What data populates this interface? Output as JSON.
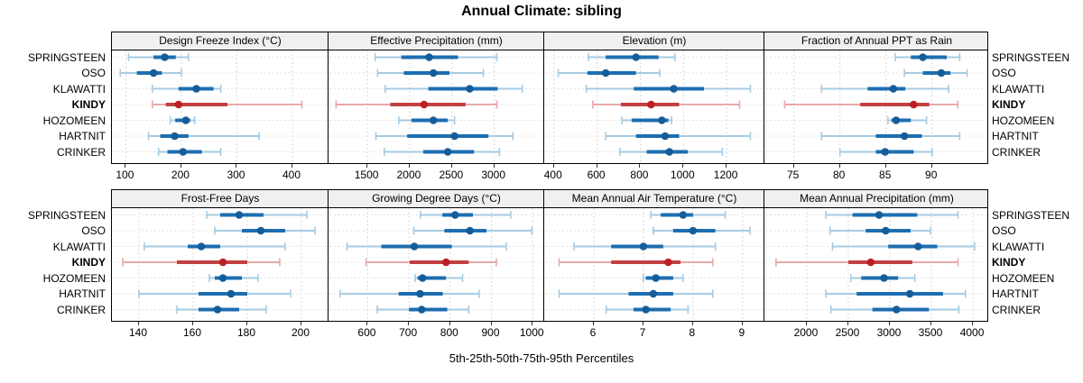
{
  "title": "Annual Climate: sibling",
  "caption": "5th-25th-50th-75th-95th Percentiles",
  "sites": [
    "SPRINGSTEEN",
    "OSO",
    "KLAWATTI",
    "KINDY",
    "HOZOMEEN",
    "HARTNIT",
    "CRINKER"
  ],
  "highlighted_site": "KINDY",
  "percentile_levels": [
    "5th",
    "25th",
    "50th",
    "75th",
    "95th"
  ],
  "colors": {
    "blue_range": "#a6cbe3",
    "blue_bar": "#1d6eb0",
    "blue_dot": "#155d99",
    "red_range": "#e8a9a9",
    "red_bar": "#c24040",
    "red_dot": "#bd1f26",
    "grid": "#cccccc",
    "row_line": "#dcdcdc",
    "strip_bg": "#f0f0f0",
    "border": "#000000"
  },
  "chart_data": {
    "type": "dotplot",
    "subtype": "percentile-interval (5-25-50-75-95)",
    "layout": {
      "rows": 2,
      "cols": 4,
      "grid": "on",
      "free_x_scales": true,
      "legend": "none"
    },
    "panels": [
      {
        "title": "Design Freeze Index (°C)",
        "row": 0,
        "col": 0,
        "xlim": [
          75,
          465
        ],
        "xticks": [
          100,
          200,
          300,
          400
        ],
        "values": {
          "SPRINGSTEEN": [
            105,
            150,
            170,
            190,
            213
          ],
          "OSO": [
            90,
            120,
            150,
            165,
            200
          ],
          "KLAWATTI": [
            148,
            195,
            227,
            258,
            271
          ],
          "KINDY": [
            148,
            172,
            195,
            283,
            417
          ],
          "HOZOMEEN": [
            180,
            189,
            208,
            216,
            224
          ],
          "HARTNIT": [
            141,
            162,
            188,
            213,
            340
          ],
          "CRINKER": [
            159,
            175,
            203,
            237,
            271
          ]
        }
      },
      {
        "title": "Effective Precipitation (mm)",
        "row": 0,
        "col": 1,
        "xlim": [
          1040,
          3590
        ],
        "xticks": [
          1500,
          2000,
          2500,
          3000
        ],
        "values": {
          "SPRINGSTEEN": [
            1590,
            1900,
            2230,
            2570,
            3030
          ],
          "OSO": [
            1620,
            1930,
            2280,
            2470,
            2870
          ],
          "KLAWATTI": [
            1710,
            2220,
            2710,
            3040,
            3330
          ],
          "KINDY": [
            1130,
            1770,
            2170,
            2660,
            3030
          ],
          "HOZOMEEN": [
            1870,
            2020,
            2280,
            2450,
            2530
          ],
          "HARTNIT": [
            1600,
            1970,
            2530,
            2930,
            3220
          ],
          "CRINKER": [
            1700,
            2160,
            2450,
            2760,
            3060
          ]
        }
      },
      {
        "title": "Elevation (m)",
        "row": 0,
        "col": 2,
        "xlim": [
          355,
          1375
        ],
        "xticks": [
          400,
          600,
          800,
          1000,
          1200
        ],
        "values": {
          "SPRINGSTEEN": [
            560,
            640,
            780,
            885,
            960
          ],
          "OSO": [
            420,
            555,
            640,
            780,
            890
          ],
          "KLAWATTI": [
            550,
            770,
            955,
            1095,
            1310
          ],
          "KINDY": [
            580,
            710,
            850,
            980,
            1260
          ],
          "HOZOMEEN": [
            715,
            760,
            900,
            930,
            945
          ],
          "HARTNIT": [
            640,
            780,
            915,
            980,
            1310
          ],
          "CRINKER": [
            705,
            830,
            935,
            1020,
            1180
          ]
        }
      },
      {
        "title": "Fraction of Annual PPT as Rain",
        "row": 0,
        "col": 3,
        "xlim": [
          71.8,
          96.2
        ],
        "xticks": [
          75,
          80,
          85,
          90
        ],
        "values": {
          "SPRINGSTEEN": [
            86,
            87.7,
            89,
            91.6,
            93
          ],
          "OSO": [
            87,
            89,
            91,
            92,
            93.8
          ],
          "KLAWATTI": [
            78,
            83,
            85.8,
            87.1,
            91.8
          ],
          "KINDY": [
            74,
            82.2,
            88,
            89.7,
            92.8
          ],
          "HOZOMEEN": [
            85.2,
            85.6,
            86.1,
            87.7,
            89.4
          ],
          "HARTNIT": [
            78,
            83.9,
            87,
            88.9,
            93
          ],
          "CRINKER": [
            80,
            83.9,
            84.9,
            88,
            90
          ]
        }
      },
      {
        "title": "Frost-Free Days",
        "row": 1,
        "col": 0,
        "xlim": [
          130,
          210
        ],
        "xticks": [
          140,
          160,
          180,
          200
        ],
        "values": {
          "SPRINGSTEEN": [
            165,
            170,
            177,
            186,
            202
          ],
          "OSO": [
            168,
            178,
            185,
            194,
            205
          ],
          "KLAWATTI": [
            142,
            158,
            163,
            170,
            194
          ],
          "KINDY": [
            134,
            154,
            171,
            180,
            192
          ],
          "HOZOMEEN": [
            166,
            168,
            171,
            178,
            184
          ],
          "HARTNIT": [
            140,
            162,
            174,
            180,
            196
          ],
          "CRINKER": [
            154,
            162,
            169,
            177,
            187
          ]
        }
      },
      {
        "title": "Growing Degree Days (°C)",
        "row": 1,
        "col": 1,
        "xlim": [
          505,
          1028
        ],
        "xticks": [
          600,
          700,
          800,
          900,
          1000
        ],
        "values": {
          "SPRINGSTEEN": [
            728,
            781,
            812,
            855,
            947
          ],
          "OSO": [
            712,
            786,
            848,
            888,
            998
          ],
          "KLAWATTI": [
            550,
            633,
            713,
            804,
            936
          ],
          "KINDY": [
            596,
            702,
            790,
            845,
            912
          ],
          "HOZOMEEN": [
            715,
            721,
            733,
            790,
            830
          ],
          "HARTNIT": [
            533,
            675,
            727,
            782,
            870
          ],
          "CRINKER": [
            623,
            700,
            731,
            793,
            845
          ]
        }
      },
      {
        "title": "Mean Annual Air Temperature (°C)",
        "row": 1,
        "col": 2,
        "xlim": [
          5.0,
          9.44
        ],
        "xticks": [
          6,
          7,
          8,
          9
        ],
        "values": {
          "SPRINGSTEEN": [
            7.15,
            7.35,
            7.8,
            8.0,
            8.65
          ],
          "OSO": [
            7.2,
            7.6,
            8.0,
            8.45,
            9.15
          ],
          "KLAWATTI": [
            5.6,
            6.35,
            7.0,
            7.4,
            8.45
          ],
          "KINDY": [
            5.3,
            6.35,
            7.5,
            7.75,
            8.4
          ],
          "HOZOMEEN": [
            7.0,
            7.05,
            7.25,
            7.6,
            7.8
          ],
          "HARTNIT": [
            5.3,
            6.7,
            7.2,
            7.6,
            8.4
          ],
          "CRINKER": [
            6.25,
            6.8,
            7.05,
            7.55,
            7.9
          ]
        }
      },
      {
        "title": "Mean Annual Precipitation (mm)",
        "row": 1,
        "col": 3,
        "xlim": [
          1490,
          4195
        ],
        "xticks": [
          2000,
          2500,
          3000,
          3500,
          4000
        ],
        "values": {
          "SPRINGSTEEN": [
            2230,
            2550,
            2870,
            3330,
            3820
          ],
          "OSO": [
            2280,
            2710,
            2950,
            3250,
            3490
          ],
          "KLAWATTI": [
            2310,
            2980,
            3340,
            3570,
            4020
          ],
          "KINDY": [
            1630,
            2500,
            2770,
            3270,
            3820
          ],
          "HOZOMEEN": [
            2530,
            2655,
            2930,
            3100,
            3300
          ],
          "HARTNIT": [
            2230,
            2600,
            3240,
            3640,
            3910
          ],
          "CRINKER": [
            2290,
            2790,
            3080,
            3470,
            3830
          ]
        }
      }
    ]
  }
}
